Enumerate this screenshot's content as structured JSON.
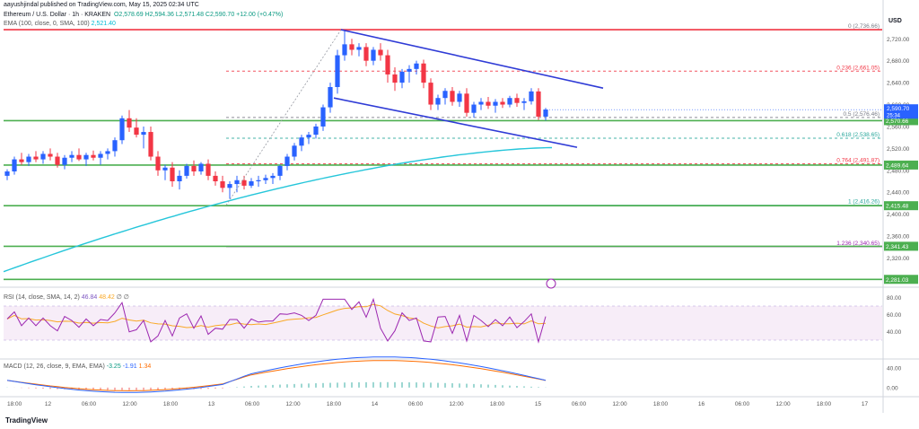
{
  "header": {
    "user_line": "aayushjindal published on TradingView.com, May 15, 2025 02:34 UTC",
    "symbol_line": "Ethereum / U.S. Dollar · 1h · KRAKEN",
    "ohlc": "O2,578.69 H2,594.36 L2,571.48 C2,590.70 +12.00 (+0.47%)",
    "ema_label": "EMA (100, close, 0, SMA, 100)",
    "ema_value": "2,521.40"
  },
  "price_scale": {
    "currency": "USD",
    "ticks": [
      "2,720.00",
      "2,680.00",
      "2,640.00",
      "2,600.00",
      "2,560.00",
      "2,520.00",
      "2,480.00",
      "2,440.00",
      "2,400.00",
      "2,360.00",
      "2,320.00"
    ],
    "tick_values": [
      2720,
      2680,
      2640,
      2600,
      2560,
      2520,
      2480,
      2440,
      2400,
      2360,
      2320
    ],
    "current_price": "2,590.70",
    "countdown": "25:34",
    "level_tags": [
      {
        "label": "2,570.66",
        "value": 2570.66
      },
      {
        "label": "2,489.64",
        "value": 2489.64
      },
      {
        "label": "2,415.48",
        "value": 2415.48
      },
      {
        "label": "2,341.43",
        "value": 2341.43
      },
      {
        "label": "2,281.03",
        "value": 2281.03
      }
    ]
  },
  "fib_levels": [
    {
      "label": "0 (2,736.66)",
      "value": 2736.66,
      "color": "#787b86",
      "dashed": false
    },
    {
      "label": "0.236 (2,661.05)",
      "value": 2661.05,
      "color": "#f23645",
      "dashed": true
    },
    {
      "label": "0.5 (2,576.46)",
      "value": 2576.46,
      "color": "#787b86",
      "dashed": true
    },
    {
      "label": "0.618 (2,538.65)",
      "value": 2538.65,
      "color": "#26a69a",
      "dashed": true
    },
    {
      "label": "0.764 (2,491.87)",
      "value": 2491.87,
      "color": "#f23645",
      "dashed": true
    },
    {
      "label": "1 (2,416.26)",
      "value": 2416.26,
      "color": "#26a69a",
      "dashed": false
    },
    {
      "label": "1.236 (2,340.65)",
      "value": 2340.65,
      "color": "#9c27b0",
      "dashed": false
    }
  ],
  "time_axis": [
    "18:00",
    "12",
    "06:00",
    "12:00",
    "18:00",
    "13",
    "06:00",
    "12:00",
    "18:00",
    "14",
    "06:00",
    "12:00",
    "18:00",
    "15",
    "06:00",
    "12:00",
    "18:00",
    "16",
    "06:00",
    "12:00",
    "18:00",
    "17"
  ],
  "rsi": {
    "legend": "RSI (14, close, SMA, 14, 2)",
    "rsi_value": "46.84",
    "sma_value": "48.42",
    "extra": "∅ ∅",
    "ticks": [
      "80.00",
      "60.00",
      "40.00"
    ],
    "tick_values": [
      80,
      60,
      40
    ]
  },
  "macd": {
    "legend": "MACD (12, 26, close, 9, EMA, EMA)",
    "hist_value": "-3.25",
    "macd_value": "-1.91",
    "signal_value": "1.34",
    "ticks": [
      "40.00",
      "0.00"
    ],
    "tick_values": [
      40,
      0
    ]
  },
  "brand": "TradingView",
  "colors": {
    "up": "#2962ff",
    "down": "#f23645",
    "ema": "#26c6da",
    "support": "#4caf50",
    "channel": "#2f3bd6",
    "rsi": "#9c27b0",
    "rsi_sma": "#f9a825",
    "macd": "#2962ff",
    "signal": "#ff6d00"
  },
  "chart_data": {
    "type": "candlestick",
    "title": "Ethereum / U.S. Dollar · 1h · KRAKEN",
    "ylim": [
      2270,
      2750
    ],
    "candles": [
      [
        2470,
        2482,
        2462,
        2478
      ],
      [
        2478,
        2505,
        2472,
        2500
      ],
      [
        2500,
        2512,
        2490,
        2495
      ],
      [
        2495,
        2510,
        2488,
        2505
      ],
      [
        2505,
        2515,
        2495,
        2500
      ],
      [
        2500,
        2515,
        2492,
        2510
      ],
      [
        2510,
        2520,
        2498,
        2505
      ],
      [
        2505,
        2512,
        2485,
        2490
      ],
      [
        2490,
        2508,
        2482,
        2503
      ],
      [
        2503,
        2515,
        2495,
        2508
      ],
      [
        2508,
        2520,
        2497,
        2500
      ],
      [
        2500,
        2512,
        2488,
        2508
      ],
      [
        2508,
        2516,
        2498,
        2503
      ],
      [
        2503,
        2515,
        2490,
        2510
      ],
      [
        2510,
        2520,
        2500,
        2515
      ],
      [
        2515,
        2540,
        2505,
        2535
      ],
      [
        2535,
        2580,
        2528,
        2575
      ],
      [
        2575,
        2590,
        2550,
        2558
      ],
      [
        2558,
        2575,
        2540,
        2545
      ],
      [
        2545,
        2560,
        2520,
        2550
      ],
      [
        2550,
        2560,
        2498,
        2505
      ],
      [
        2505,
        2515,
        2470,
        2480
      ],
      [
        2480,
        2490,
        2462,
        2485
      ],
      [
        2485,
        2495,
        2450,
        2460
      ],
      [
        2460,
        2480,
        2445,
        2470
      ],
      [
        2470,
        2492,
        2465,
        2488
      ],
      [
        2488,
        2498,
        2470,
        2478
      ],
      [
        2478,
        2495,
        2472,
        2492
      ],
      [
        2492,
        2500,
        2462,
        2470
      ],
      [
        2470,
        2478,
        2452,
        2460
      ],
      [
        2460,
        2470,
        2440,
        2448
      ],
      [
        2448,
        2460,
        2428,
        2455
      ],
      [
        2455,
        2470,
        2440,
        2462
      ],
      [
        2462,
        2470,
        2445,
        2452
      ],
      [
        2452,
        2466,
        2448,
        2460
      ],
      [
        2460,
        2470,
        2450,
        2462
      ],
      [
        2462,
        2472,
        2455,
        2466
      ],
      [
        2466,
        2475,
        2455,
        2470
      ],
      [
        2470,
        2490,
        2462,
        2488
      ],
      [
        2488,
        2510,
        2480,
        2505
      ],
      [
        2505,
        2530,
        2498,
        2525
      ],
      [
        2525,
        2545,
        2515,
        2540
      ],
      [
        2540,
        2550,
        2528,
        2545
      ],
      [
        2545,
        2565,
        2538,
        2560
      ],
      [
        2560,
        2600,
        2552,
        2595
      ],
      [
        2595,
        2640,
        2585,
        2632
      ],
      [
        2632,
        2700,
        2620,
        2690
      ],
      [
        2690,
        2736,
        2680,
        2710
      ],
      [
        2710,
        2720,
        2690,
        2700
      ],
      [
        2700,
        2712,
        2688,
        2705
      ],
      [
        2705,
        2712,
        2670,
        2680
      ],
      [
        2680,
        2705,
        2672,
        2700
      ],
      [
        2700,
        2712,
        2680,
        2690
      ],
      [
        2690,
        2700,
        2640,
        2655
      ],
      [
        2655,
        2668,
        2625,
        2640
      ],
      [
        2640,
        2665,
        2630,
        2660
      ],
      [
        2660,
        2672,
        2640,
        2665
      ],
      [
        2665,
        2680,
        2655,
        2675
      ],
      [
        2675,
        2682,
        2630,
        2640
      ],
      [
        2640,
        2648,
        2590,
        2600
      ],
      [
        2600,
        2618,
        2590,
        2612
      ],
      [
        2612,
        2630,
        2600,
        2625
      ],
      [
        2625,
        2632,
        2598,
        2605
      ],
      [
        2605,
        2625,
        2596,
        2620
      ],
      [
        2620,
        2630,
        2578,
        2585
      ],
      [
        2585,
        2605,
        2576,
        2600
      ],
      [
        2600,
        2612,
        2590,
        2605
      ],
      [
        2605,
        2614,
        2592,
        2598
      ],
      [
        2598,
        2610,
        2585,
        2605
      ],
      [
        2605,
        2612,
        2594,
        2600
      ],
      [
        2600,
        2616,
        2595,
        2612
      ],
      [
        2612,
        2620,
        2596,
        2603
      ],
      [
        2603,
        2612,
        2590,
        2606
      ],
      [
        2606,
        2630,
        2600,
        2624
      ],
      [
        2624,
        2630,
        2572,
        2578
      ],
      [
        2578,
        2594,
        2571,
        2591
      ]
    ],
    "support_lines": [
      2570.66,
      2489.64,
      2415.48,
      2341.43,
      2281.03
    ]
  }
}
